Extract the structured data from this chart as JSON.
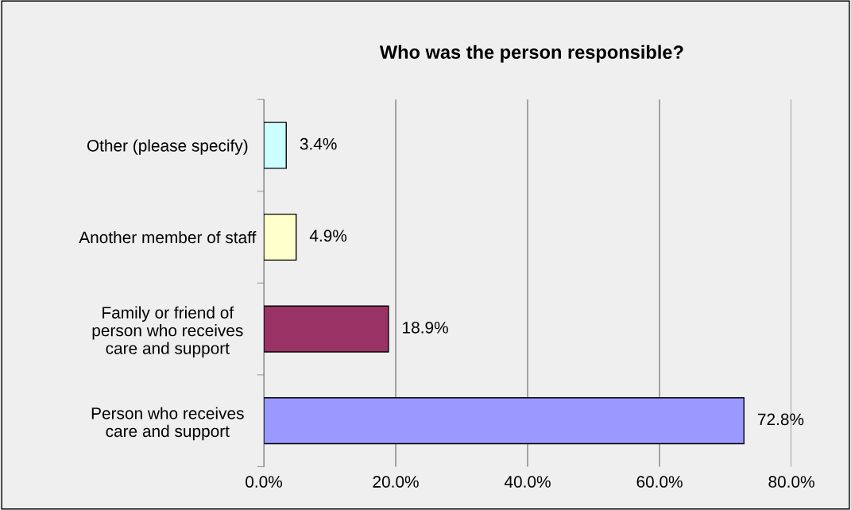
{
  "chart_data": {
    "type": "bar",
    "orientation": "horizontal",
    "title": "Who was the person responsible?",
    "categories": [
      "Other (please specify)",
      "Another member of staff",
      "Family or friend of\nperson who receives\ncare and support",
      "Person who receives\ncare and support"
    ],
    "values": [
      3.4,
      4.9,
      18.9,
      72.8
    ],
    "colors": [
      "#ccffff",
      "#ffffcc",
      "#993366",
      "#9999ff"
    ],
    "value_labels": [
      "3.4%",
      "4.9%",
      "18.9%",
      "72.8%"
    ],
    "xlim": [
      0,
      80
    ],
    "xticks": [
      {
        "value": 0,
        "label": "0.0%"
      },
      {
        "value": 20,
        "label": "20.0%"
      },
      {
        "value": 40,
        "label": "40.0%"
      },
      {
        "value": 60,
        "label": "60.0%"
      },
      {
        "value": 80,
        "label": "80.0%"
      }
    ],
    "grid": "x",
    "legend": false
  }
}
